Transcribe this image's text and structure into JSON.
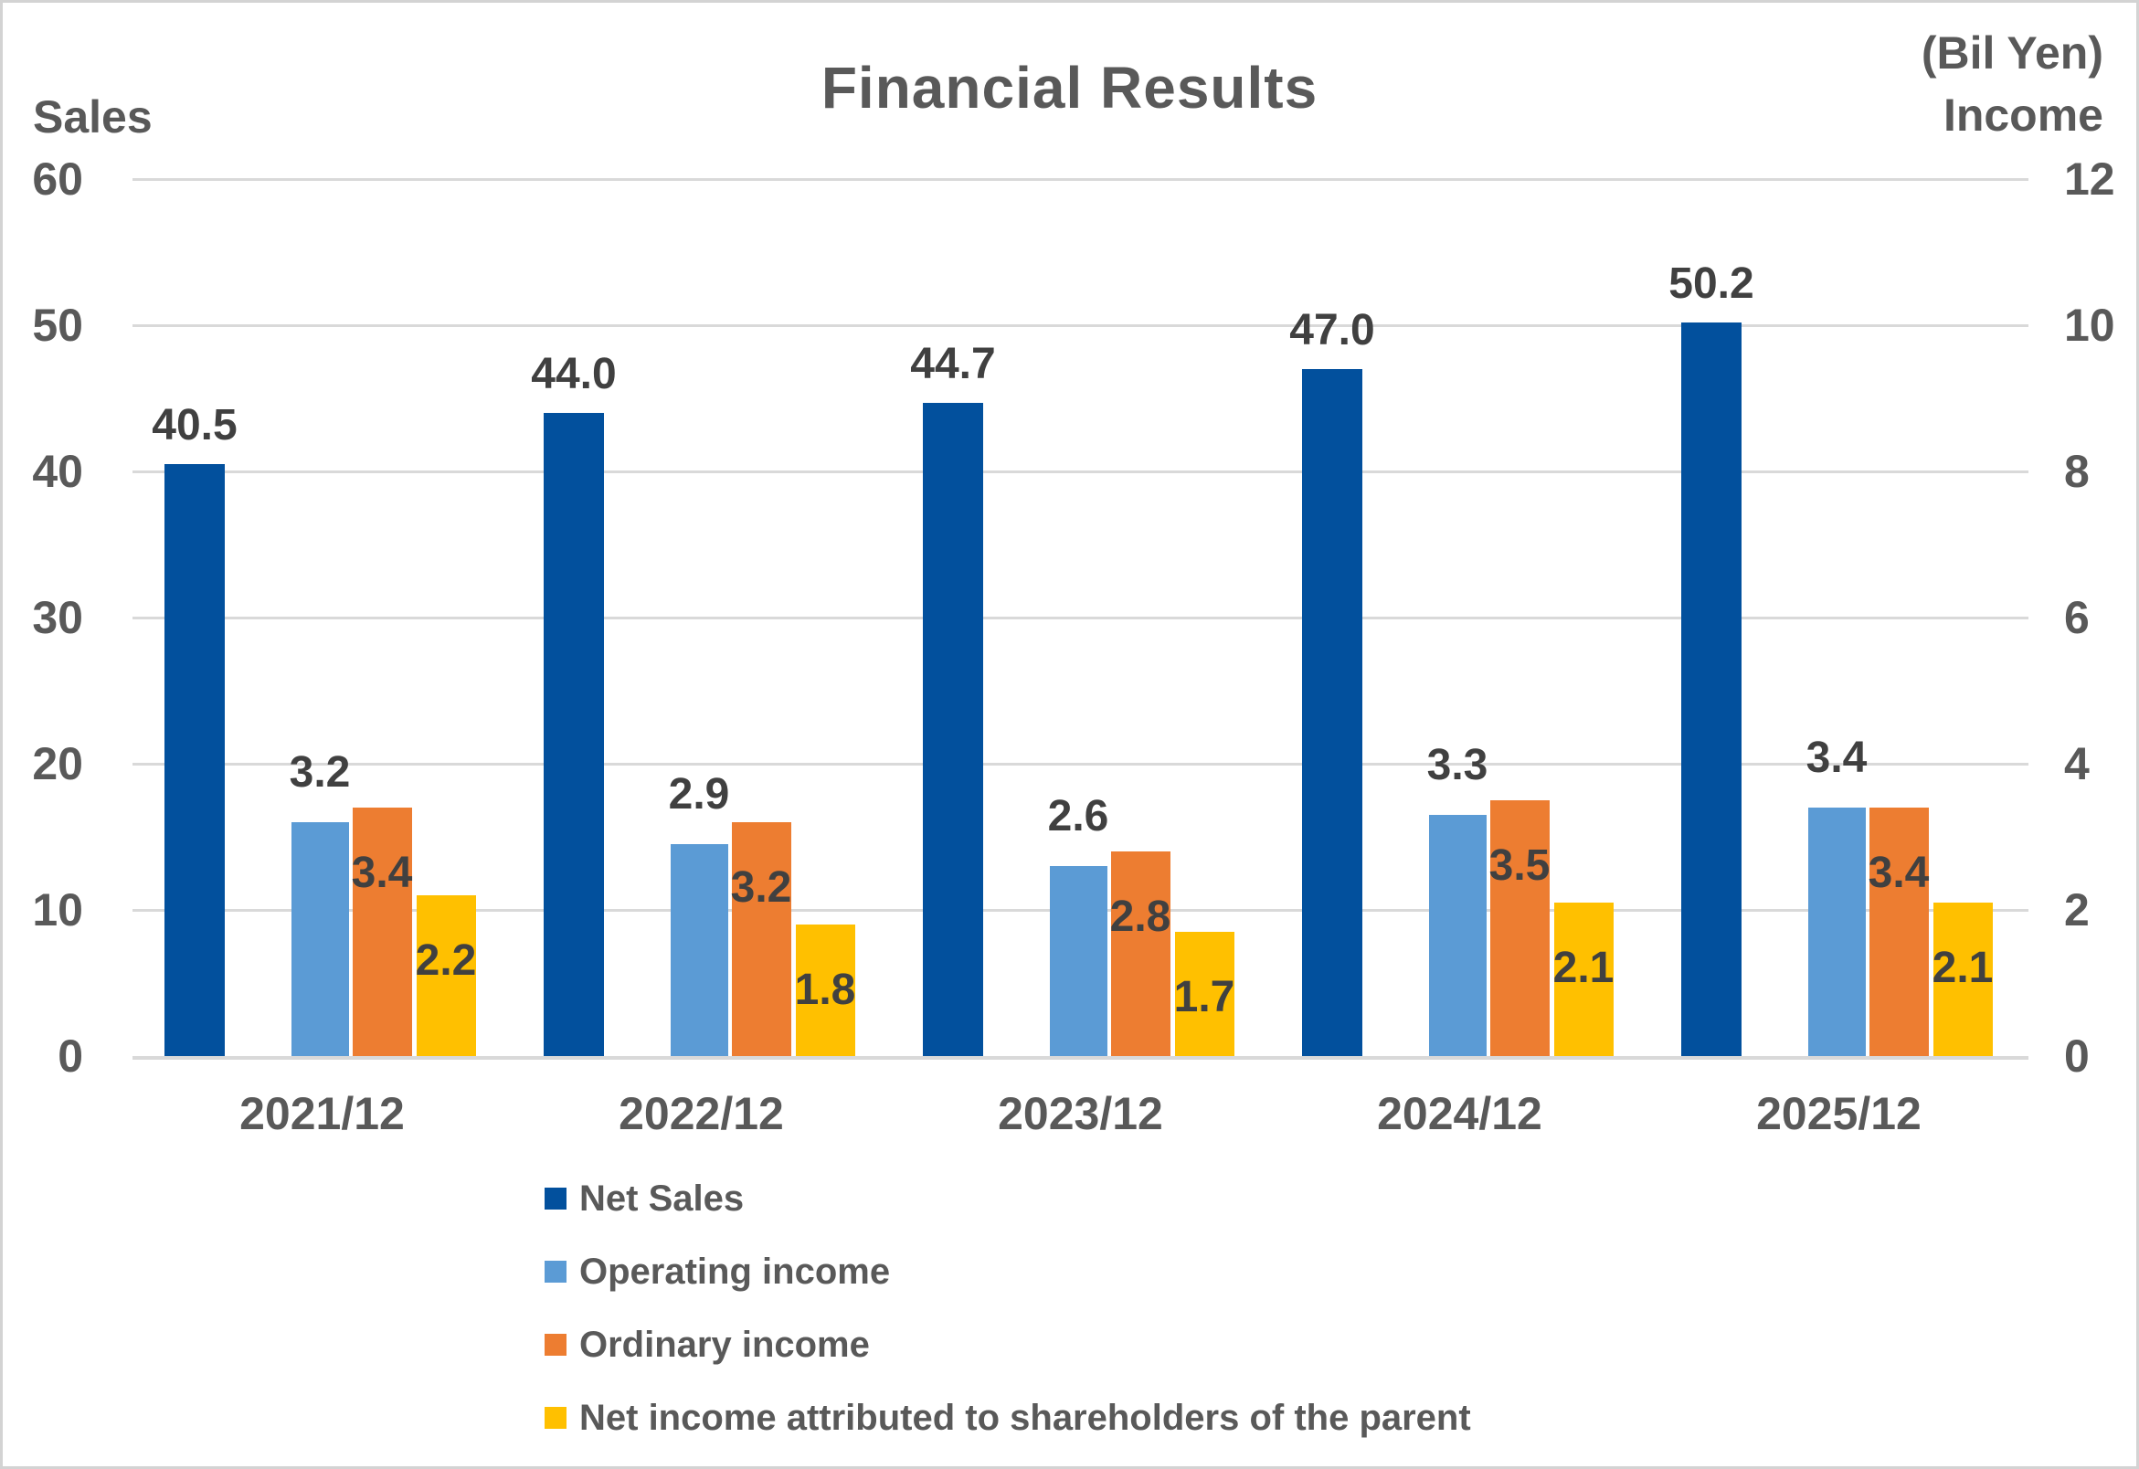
{
  "title": "Financial Results",
  "axes": {
    "left": {
      "title": "Sales",
      "ticks": [
        "60",
        "50",
        "40",
        "30",
        "20",
        "10",
        "0"
      ]
    },
    "right": {
      "note": "(Bil Yen)",
      "title": "Income",
      "ticks": [
        "12",
        "10",
        "8",
        "6",
        "4",
        "2",
        "0"
      ]
    }
  },
  "chart_data": {
    "type": "bar",
    "title": "Financial Results",
    "categories": [
      "2021/12",
      "2022/12",
      "2023/12",
      "2024/12",
      "2025/12"
    ],
    "series": [
      {
        "name": "Net Sales",
        "axis": "left",
        "color": "#02509D",
        "values": [
          40.5,
          44.0,
          44.7,
          47.0,
          50.2
        ]
      },
      {
        "name": "Operating income",
        "axis": "right",
        "color": "#5B9BD5",
        "values": [
          3.2,
          2.9,
          2.6,
          3.3,
          3.4
        ]
      },
      {
        "name": "Ordinary income",
        "axis": "right",
        "color": "#ED7D31",
        "values": [
          3.4,
          3.2,
          2.8,
          3.5,
          3.4
        ]
      },
      {
        "name": "Net income attributed to shareholders of the parent",
        "axis": "right",
        "color": "#FFC000",
        "values": [
          2.2,
          1.8,
          1.7,
          2.1,
          2.1
        ]
      }
    ],
    "left_axis_range": [
      0,
      60
    ],
    "right_axis_range": [
      0,
      12
    ],
    "gridline_step_left": 10,
    "gridline_step_right": 2,
    "grid": true,
    "legend_position": "bottom-left",
    "data_labels": true,
    "gridline_color": "#D9D9D9",
    "text_color_axis": "#595959",
    "text_color_data_label": "#404040"
  }
}
